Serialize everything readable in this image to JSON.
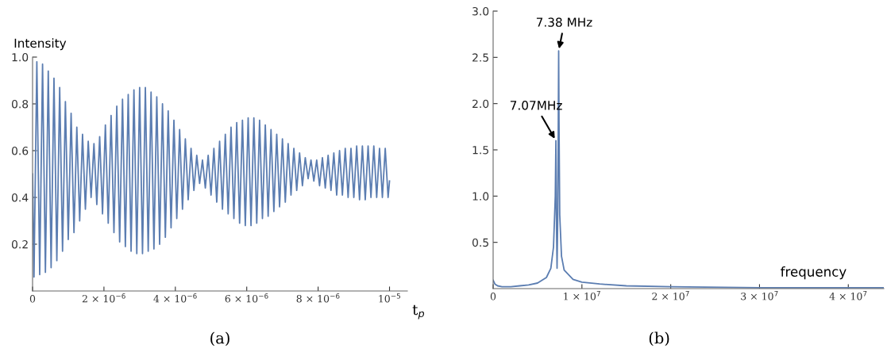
{
  "chart_data": [
    {
      "type": "line",
      "title": "(a)",
      "xlabel": "t$_{p}$",
      "ylabel": "Intensity",
      "grid": false,
      "legend": false,
      "xlim": [
        0,
        1.05e-05
      ],
      "xticks": [
        0,
        {
          "value": 2e-06,
          "label": "2 × 10$^{−6}$"
        },
        {
          "value": 4e-06,
          "label": "4 × 10$^{−6}$"
        },
        {
          "value": 6e-06,
          "label": "6 × 10$^{−6}$"
        },
        {
          "value": 8e-06,
          "label": "8 × 10$^{−6}$"
        },
        {
          "value": 1e-05,
          "label": "10$^{−5}$"
        }
      ],
      "ylim": [
        0,
        1.0
      ],
      "yticks": [
        0.2,
        0.4,
        0.6,
        0.8,
        {
          "value": 1.0,
          "label": "1.0"
        }
      ],
      "series": [
        {
          "color": "#5b7db1",
          "x": [
            0,
            4e-08,
            1.2e-07,
            2e-07,
            2.8e-07,
            3.6e-07,
            4.4e-07,
            5.2e-07,
            6e-07,
            6.8e-07,
            7.6e-07,
            8.4e-07,
            9.2e-07,
            1e-06,
            1.08e-06,
            1.16e-06,
            1.24e-06,
            1.32e-06,
            1.4e-06,
            1.48e-06,
            1.56e-06,
            1.64e-06,
            1.72e-06,
            1.8e-06,
            1.88e-06,
            1.96e-06,
            2.04e-06,
            2.12e-06,
            2.2e-06,
            2.28e-06,
            2.36e-06,
            2.44e-06,
            2.52e-06,
            2.6e-06,
            2.68e-06,
            2.76e-06,
            2.84e-06,
            2.92e-06,
            3e-06,
            3.08e-06,
            3.16e-06,
            3.24e-06,
            3.32e-06,
            3.4e-06,
            3.48e-06,
            3.56e-06,
            3.64e-06,
            3.72e-06,
            3.8e-06,
            3.88e-06,
            3.96e-06,
            4.04e-06,
            4.12e-06,
            4.2e-06,
            4.28e-06,
            4.36e-06,
            4.44e-06,
            4.52e-06,
            4.6e-06,
            4.68e-06,
            4.76e-06,
            4.84e-06,
            4.92e-06,
            5e-06,
            5.08e-06,
            5.16e-06,
            5.24e-06,
            5.32e-06,
            5.4e-06,
            5.48e-06,
            5.56e-06,
            5.64e-06,
            5.72e-06,
            5.8e-06,
            5.88e-06,
            5.96e-06,
            6.04e-06,
            6.12e-06,
            6.2e-06,
            6.28e-06,
            6.36e-06,
            6.44e-06,
            6.52e-06,
            6.6e-06,
            6.68e-06,
            6.76e-06,
            6.84e-06,
            6.92e-06,
            7e-06,
            7.08e-06,
            7.16e-06,
            7.24e-06,
            7.32e-06,
            7.4e-06,
            7.48e-06,
            7.56e-06,
            7.64e-06,
            7.72e-06,
            7.8e-06,
            7.88e-06,
            7.96e-06,
            8.04e-06,
            8.12e-06,
            8.2e-06,
            8.28e-06,
            8.36e-06,
            8.44e-06,
            8.52e-06,
            8.6e-06,
            8.68e-06,
            8.76e-06,
            8.84e-06,
            8.92e-06,
            9e-06,
            9.08e-06,
            9.16e-06,
            9.24e-06,
            9.32e-06,
            9.4e-06,
            9.48e-06,
            9.56e-06,
            9.64e-06,
            9.72e-06,
            9.8e-06,
            9.88e-06,
            9.96e-06,
            1e-05
          ],
          "values": [
            0.5,
            0.06,
            0.98,
            0.07,
            0.97,
            0.08,
            0.94,
            0.1,
            0.91,
            0.13,
            0.87,
            0.17,
            0.81,
            0.22,
            0.76,
            0.25,
            0.7,
            0.3,
            0.67,
            0.35,
            0.64,
            0.4,
            0.63,
            0.37,
            0.66,
            0.33,
            0.71,
            0.29,
            0.75,
            0.25,
            0.79,
            0.21,
            0.82,
            0.19,
            0.84,
            0.17,
            0.86,
            0.16,
            0.87,
            0.16,
            0.87,
            0.17,
            0.85,
            0.18,
            0.83,
            0.2,
            0.8,
            0.23,
            0.77,
            0.27,
            0.73,
            0.31,
            0.69,
            0.35,
            0.65,
            0.39,
            0.61,
            0.43,
            0.58,
            0.46,
            0.56,
            0.44,
            0.58,
            0.41,
            0.61,
            0.38,
            0.64,
            0.35,
            0.67,
            0.33,
            0.7,
            0.31,
            0.72,
            0.29,
            0.73,
            0.28,
            0.74,
            0.28,
            0.74,
            0.29,
            0.73,
            0.31,
            0.71,
            0.32,
            0.69,
            0.34,
            0.67,
            0.36,
            0.65,
            0.38,
            0.63,
            0.41,
            0.61,
            0.43,
            0.59,
            0.45,
            0.57,
            0.48,
            0.56,
            0.47,
            0.56,
            0.45,
            0.57,
            0.44,
            0.58,
            0.43,
            0.59,
            0.41,
            0.6,
            0.41,
            0.61,
            0.4,
            0.61,
            0.4,
            0.62,
            0.39,
            0.62,
            0.39,
            0.62,
            0.4,
            0.62,
            0.4,
            0.61,
            0.4,
            0.61,
            0.4,
            0.47
          ]
        }
      ]
    },
    {
      "type": "line",
      "title": "(b)",
      "xlabel": "frequency",
      "grid": false,
      "legend": false,
      "xlim": [
        0,
        44000000.0
      ],
      "xticks": [
        0,
        {
          "value": 10000000.0,
          "label": "1 × 10$^{7}$"
        },
        {
          "value": 20000000.0,
          "label": "2 × 10$^{7}$"
        },
        {
          "value": 30000000.0,
          "label": "3 × 10$^{7}$"
        },
        {
          "value": 40000000.0,
          "label": "4 × 10$^{7}$"
        }
      ],
      "ylim": [
        0,
        3.0
      ],
      "yticks": [
        0.5,
        {
          "value": 1,
          "label": "1.0"
        },
        1.5,
        {
          "value": 2,
          "label": "2.0"
        },
        2.5,
        {
          "value": 3,
          "label": "3.0"
        }
      ],
      "annotations": [
        {
          "text": "7.38 MHz",
          "x": 7380000.0,
          "y": 2.57
        },
        {
          "text": "7.07MHz",
          "x": 7070000.0,
          "y": 1.6
        }
      ],
      "series": [
        {
          "color": "#5b7db1",
          "x": [
            0,
            200000.0,
            500000.0,
            1000000.0,
            2000000.0,
            3000000.0,
            4000000.0,
            5000000.0,
            6000000.0,
            6500000.0,
            6800000.0,
            7000000.0,
            7070000.0,
            7120000.0,
            7200000.0,
            7280000.0,
            7340000.0,
            7380000.0,
            7420000.0,
            7500000.0,
            7700000.0,
            8000000.0,
            9000000.0,
            10000000.0,
            12000000.0,
            15000000.0,
            20000000.0,
            30000000.0,
            44000000.0
          ],
          "values": [
            0.09,
            0.05,
            0.03,
            0.02,
            0.02,
            0.03,
            0.04,
            0.06,
            0.12,
            0.22,
            0.45,
            1.0,
            1.6,
            0.8,
            0.22,
            0.8,
            1.8,
            2.57,
            1.8,
            0.8,
            0.35,
            0.2,
            0.1,
            0.07,
            0.05,
            0.03,
            0.02,
            0.01,
            0.01
          ]
        }
      ]
    }
  ]
}
